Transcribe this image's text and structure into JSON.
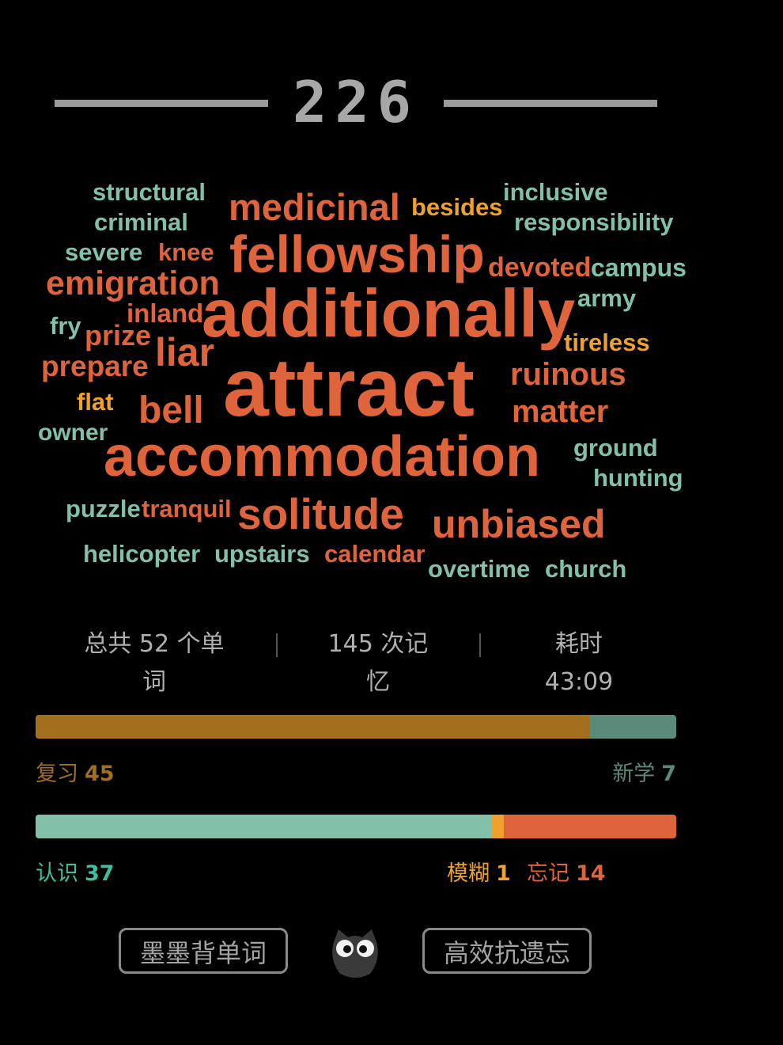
{
  "header": {
    "day_count": "226"
  },
  "word_cloud": {
    "words": [
      {
        "text": "structural",
        "color": "green"
      },
      {
        "text": "criminal",
        "color": "green"
      },
      {
        "text": "medicinal",
        "color": "orange"
      },
      {
        "text": "besides",
        "color": "yellow"
      },
      {
        "text": "inclusive",
        "color": "green"
      },
      {
        "text": "responsibility",
        "color": "green"
      },
      {
        "text": "severe",
        "color": "green"
      },
      {
        "text": "knee",
        "color": "orange"
      },
      {
        "text": "fellowship",
        "color": "orange"
      },
      {
        "text": "devoted",
        "color": "orange"
      },
      {
        "text": "campus",
        "color": "green"
      },
      {
        "text": "emigration",
        "color": "orange"
      },
      {
        "text": "army",
        "color": "green"
      },
      {
        "text": "inland",
        "color": "orange"
      },
      {
        "text": "additionally",
        "color": "orange"
      },
      {
        "text": "fry",
        "color": "green"
      },
      {
        "text": "prize",
        "color": "orange"
      },
      {
        "text": "liar",
        "color": "orange"
      },
      {
        "text": "tireless",
        "color": "yellow"
      },
      {
        "text": "prepare",
        "color": "orange"
      },
      {
        "text": "attract",
        "color": "orange"
      },
      {
        "text": "ruinous",
        "color": "orange"
      },
      {
        "text": "flat",
        "color": "yellow"
      },
      {
        "text": "bell",
        "color": "orange"
      },
      {
        "text": "matter",
        "color": "orange"
      },
      {
        "text": "owner",
        "color": "green"
      },
      {
        "text": "accommodation",
        "color": "orange"
      },
      {
        "text": "ground",
        "color": "green"
      },
      {
        "text": "hunting",
        "color": "green"
      },
      {
        "text": "puzzle",
        "color": "green"
      },
      {
        "text": "tranquil",
        "color": "orange"
      },
      {
        "text": "solitude",
        "color": "orange"
      },
      {
        "text": "unbiased",
        "color": "orange"
      },
      {
        "text": "helicopter",
        "color": "green"
      },
      {
        "text": "upstairs",
        "color": "green"
      },
      {
        "text": "calendar",
        "color": "orange"
      },
      {
        "text": "overtime",
        "color": "green"
      },
      {
        "text": "church",
        "color": "green"
      }
    ]
  },
  "stats": {
    "total_words_line1": "总共 52 个单",
    "total_words_line2": "词",
    "memories_line1": "145 次记",
    "memories_line2": "忆",
    "time_label": "耗时",
    "time_value": "43:09"
  },
  "review_bar": {
    "review_label": "复习",
    "review_count": "45",
    "new_label": "新学",
    "new_count": "7",
    "review_fraction": 0.866,
    "colors": {
      "review": "#a46f1d",
      "new": "#5a8a7a"
    }
  },
  "memory_bar": {
    "known_label": "认识",
    "known_count": "37",
    "fuzzy_label": "模糊",
    "fuzzy_count": "1",
    "forgot_label": "忘记",
    "forgot_count": "14",
    "known_fraction": 0.712,
    "fuzzy_fraction": 0.019,
    "forgot_fraction": 0.269,
    "colors": {
      "known": "#82c0a8",
      "fuzzy": "#eea12d",
      "forgot": "#e0643b"
    }
  },
  "footer": {
    "app_button": "墨墨背单词",
    "slogan_button": "高效抗遗忘"
  }
}
